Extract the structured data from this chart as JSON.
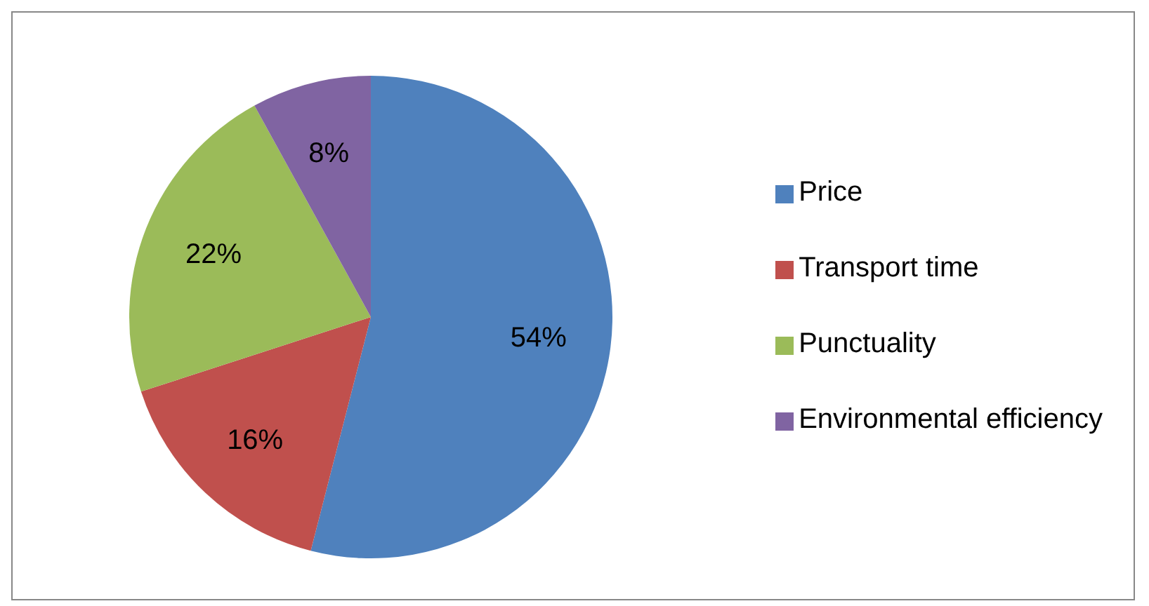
{
  "chart_data": {
    "type": "pie",
    "categories": [
      "Price",
      "Transport time",
      "Punctuality",
      "Environmental efficiency"
    ],
    "values": [
      54,
      16,
      22,
      8
    ],
    "colors": [
      "#4f81bd",
      "#c0504d",
      "#9bbb59",
      "#8064a2"
    ],
    "value_labels": [
      "54%",
      "16%",
      "22%",
      "8%"
    ],
    "legend": "right"
  }
}
